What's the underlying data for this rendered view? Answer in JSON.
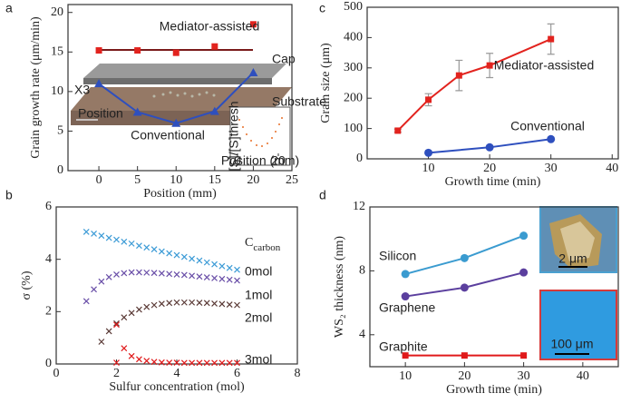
{
  "chart_data": [
    {
      "type": "line",
      "panel_label": "a",
      "xlabel": "Position (mm)",
      "ylabel": "Grain growth rate (μm/min)",
      "xlim": [
        -4,
        25
      ],
      "ylim": [
        0,
        21
      ],
      "xticks": [
        0,
        5,
        10,
        15,
        20,
        25
      ],
      "yticks": [
        0,
        5,
        10,
        15,
        20
      ],
      "series": [
        {
          "name": "Mediator-assisted",
          "color": "#e2231e",
          "marker": "square",
          "line": false,
          "x": [
            0,
            5,
            10,
            15,
            20
          ],
          "values": [
            15.2,
            15.2,
            14.9,
            15.7,
            18.5
          ]
        },
        {
          "name": "Conventional",
          "color": "#2e4fbe",
          "marker": "triangle",
          "line": true,
          "x": [
            0,
            5,
            10,
            15,
            20
          ],
          "values": [
            11,
            7.4,
            6,
            7.5,
            12.4
          ]
        }
      ],
      "annotations": [
        "Cap",
        "Substrate",
        "Position",
        "X3"
      ],
      "inset": {
        "xlabel": "Position (mm)",
        "ylabel": "[S]/[S]thresh",
        "xlim": [
          0,
          24
        ],
        "xticks": [
          0,
          20
        ]
      }
    },
    {
      "type": "line",
      "panel_label": "b",
      "xlabel": "Sulfur concentration (mol)",
      "ylabel": "σ (%)",
      "xlim": [
        0,
        8
      ],
      "ylim": [
        0,
        6
      ],
      "xticks": [
        0,
        2,
        4,
        6,
        8
      ],
      "yticks": [
        0,
        2,
        4,
        6
      ],
      "legend_title": {
        "main": "C",
        "sub": "carbon"
      },
      "series": [
        {
          "name": "0mol",
          "color": "#3c9bd6",
          "marker": "x",
          "line": false,
          "x": [
            1,
            1.25,
            1.5,
            1.75,
            2,
            2.25,
            2.5,
            2.75,
            3,
            3.25,
            3.5,
            3.75,
            4,
            4.25,
            4.5,
            4.75,
            5,
            5.25,
            5.5,
            5.75,
            6
          ],
          "values": [
            5.05,
            4.98,
            4.9,
            4.82,
            4.75,
            4.67,
            4.6,
            4.52,
            4.45,
            4.38,
            4.3,
            4.23,
            4.16,
            4.09,
            4.02,
            3.95,
            3.88,
            3.81,
            3.74,
            3.67,
            3.6
          ]
        },
        {
          "name": "1mol",
          "color": "#6a4fa8",
          "marker": "x",
          "line": false,
          "x": [
            1,
            1.25,
            1.5,
            1.75,
            2,
            2.25,
            2.5,
            2.75,
            3,
            3.25,
            3.5,
            3.75,
            4,
            4.25,
            4.5,
            4.75,
            5,
            5.25,
            5.5,
            5.75,
            6
          ],
          "values": [
            2.4,
            2.85,
            3.15,
            3.32,
            3.42,
            3.47,
            3.5,
            3.5,
            3.49,
            3.48,
            3.46,
            3.44,
            3.42,
            3.4,
            3.37,
            3.34,
            3.31,
            3.28,
            3.25,
            3.22,
            3.19
          ]
        },
        {
          "name": "2mol",
          "color": "#5a3a36",
          "marker": "x",
          "line": false,
          "x": [
            1.5,
            1.75,
            2,
            2.25,
            2.5,
            2.75,
            3,
            3.25,
            3.5,
            3.75,
            4,
            4.25,
            4.5,
            4.75,
            5,
            5.25,
            5.5,
            5.75,
            6
          ],
          "values": [
            0.85,
            1.25,
            1.55,
            1.78,
            1.95,
            2.08,
            2.18,
            2.25,
            2.3,
            2.33,
            2.35,
            2.35,
            2.35,
            2.34,
            2.33,
            2.31,
            2.29,
            2.27,
            2.25
          ]
        },
        {
          "name": "3mol",
          "color": "#e0191a",
          "marker": "x",
          "line": false,
          "x": [
            2,
            2,
            2.25,
            2.5,
            2.75,
            3,
            3.25,
            3.5,
            3.75,
            4,
            4.25,
            4.5,
            4.75,
            5,
            5.25,
            5.5,
            5.75,
            6
          ],
          "values": [
            0.05,
            1.5,
            0.6,
            0.3,
            0.18,
            0.12,
            0.08,
            0.06,
            0.05,
            0.05,
            0.04,
            0.04,
            0.04,
            0.04,
            0.04,
            0.04,
            0.04,
            0.04
          ]
        }
      ]
    },
    {
      "type": "line",
      "panel_label": "c",
      "xlabel": "Growth time (min)",
      "ylabel": "Grain size (μm)",
      "xlim": [
        0,
        41
      ],
      "ylim": [
        0,
        500
      ],
      "xticks": [
        10,
        20,
        30,
        40
      ],
      "yticks": [
        0,
        100,
        200,
        300,
        400,
        500
      ],
      "series": [
        {
          "name": "Mediator-assisted",
          "color": "#e2231e",
          "marker": "square",
          "line": true,
          "x": [
            5,
            10,
            15,
            20,
            30
          ],
          "values": [
            93,
            195,
            275,
            308,
            395
          ],
          "errors": [
            5,
            20,
            50,
            40,
            50
          ]
        },
        {
          "name": "Conventional",
          "color": "#2e4fbe",
          "marker": "circle",
          "line": true,
          "x": [
            10,
            20,
            30
          ],
          "values": [
            20,
            38,
            65
          ]
        }
      ]
    },
    {
      "type": "line",
      "panel_label": "d",
      "xlabel": "Growth time (min)",
      "ylabel": "WS₂ thickness (nm)",
      "xlim": [
        4,
        46
      ],
      "ylim": [
        2,
        12
      ],
      "xticks": [
        10,
        20,
        30,
        40
      ],
      "yticks": [
        4,
        8,
        12
      ],
      "series": [
        {
          "name": "Silicon",
          "color": "#3a9bd0",
          "marker": "circle",
          "line": true,
          "x": [
            10,
            20,
            30
          ],
          "values": [
            7.8,
            8.8,
            10.2
          ]
        },
        {
          "name": "Graphene",
          "color": "#5b3f9e",
          "marker": "circle",
          "line": true,
          "x": [
            10,
            20,
            30
          ],
          "values": [
            6.4,
            6.95,
            7.9
          ]
        },
        {
          "name": "Graphite",
          "color": "#e0191a",
          "marker": "square",
          "line": true,
          "x": [
            10,
            20,
            30
          ],
          "values": [
            2.7,
            2.7,
            2.7
          ]
        }
      ],
      "annotations": [
        "2 μm",
        "100 μm"
      ]
    }
  ]
}
